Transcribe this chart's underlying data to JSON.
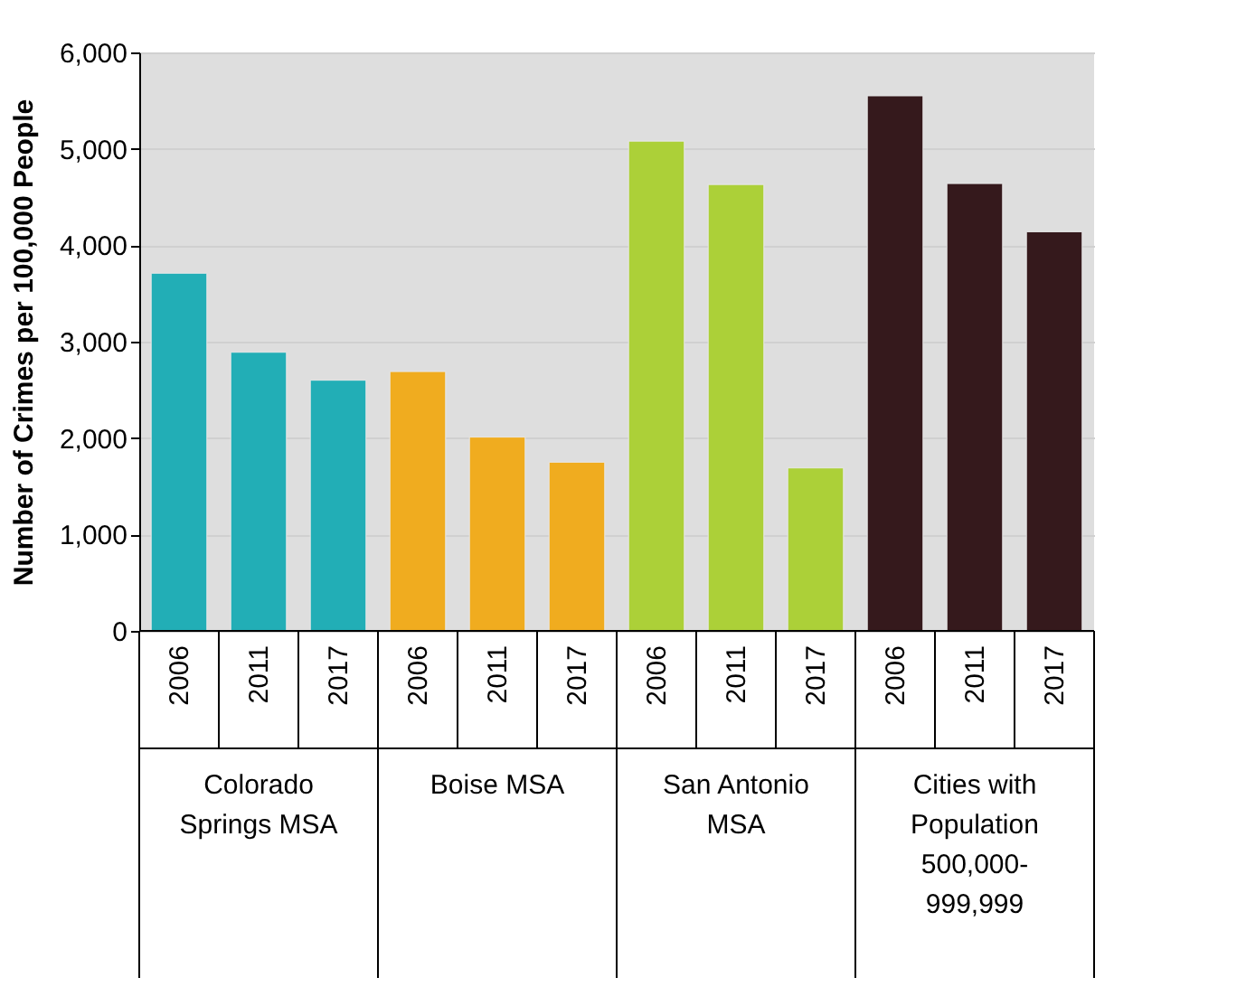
{
  "chart_data": {
    "type": "bar",
    "ylabel": "Number of Crimes per 100,000  People",
    "categories": [
      "2006",
      "2011",
      "2017",
      "2006",
      "2011",
      "2017",
      "2006",
      "2011",
      "2017",
      "2006",
      "2011",
      "2017"
    ],
    "series": [
      {
        "name": "Colorado Springs MSA",
        "color": "#22aeb6",
        "values": [
          3710,
          2890,
          2600,
          null,
          null,
          null,
          null,
          null,
          null,
          null,
          null,
          null
        ]
      },
      {
        "name": "Boise MSA",
        "color": "#f0ac1f",
        "values": [
          null,
          null,
          null,
          2690,
          2010,
          1750,
          null,
          null,
          null,
          null,
          null,
          null
        ]
      },
      {
        "name": "San Antonio MSA",
        "color": "#acd038",
        "values": [
          null,
          null,
          null,
          null,
          null,
          null,
          5080,
          4630,
          1690,
          null,
          null,
          null
        ]
      },
      {
        "name": "Cities with Population 500,000-999,999",
        "color": "#35191c",
        "values": [
          null,
          null,
          null,
          null,
          null,
          null,
          null,
          null,
          null,
          5550,
          4640,
          4140
        ]
      }
    ],
    "ylim": [
      0,
      6000
    ],
    "yticks": [
      0,
      {
        "value": 1000,
        "label": "1,000"
      },
      {
        "value": 2000,
        "label": "2,000"
      },
      {
        "value": 3000,
        "label": "3,000"
      },
      {
        "value": 4000,
        "label": "4,000"
      },
      {
        "value": 5000,
        "label": "5,000"
      },
      {
        "value": 6000,
        "label": "6,000"
      }
    ],
    "grid": "y",
    "legend": false
  }
}
